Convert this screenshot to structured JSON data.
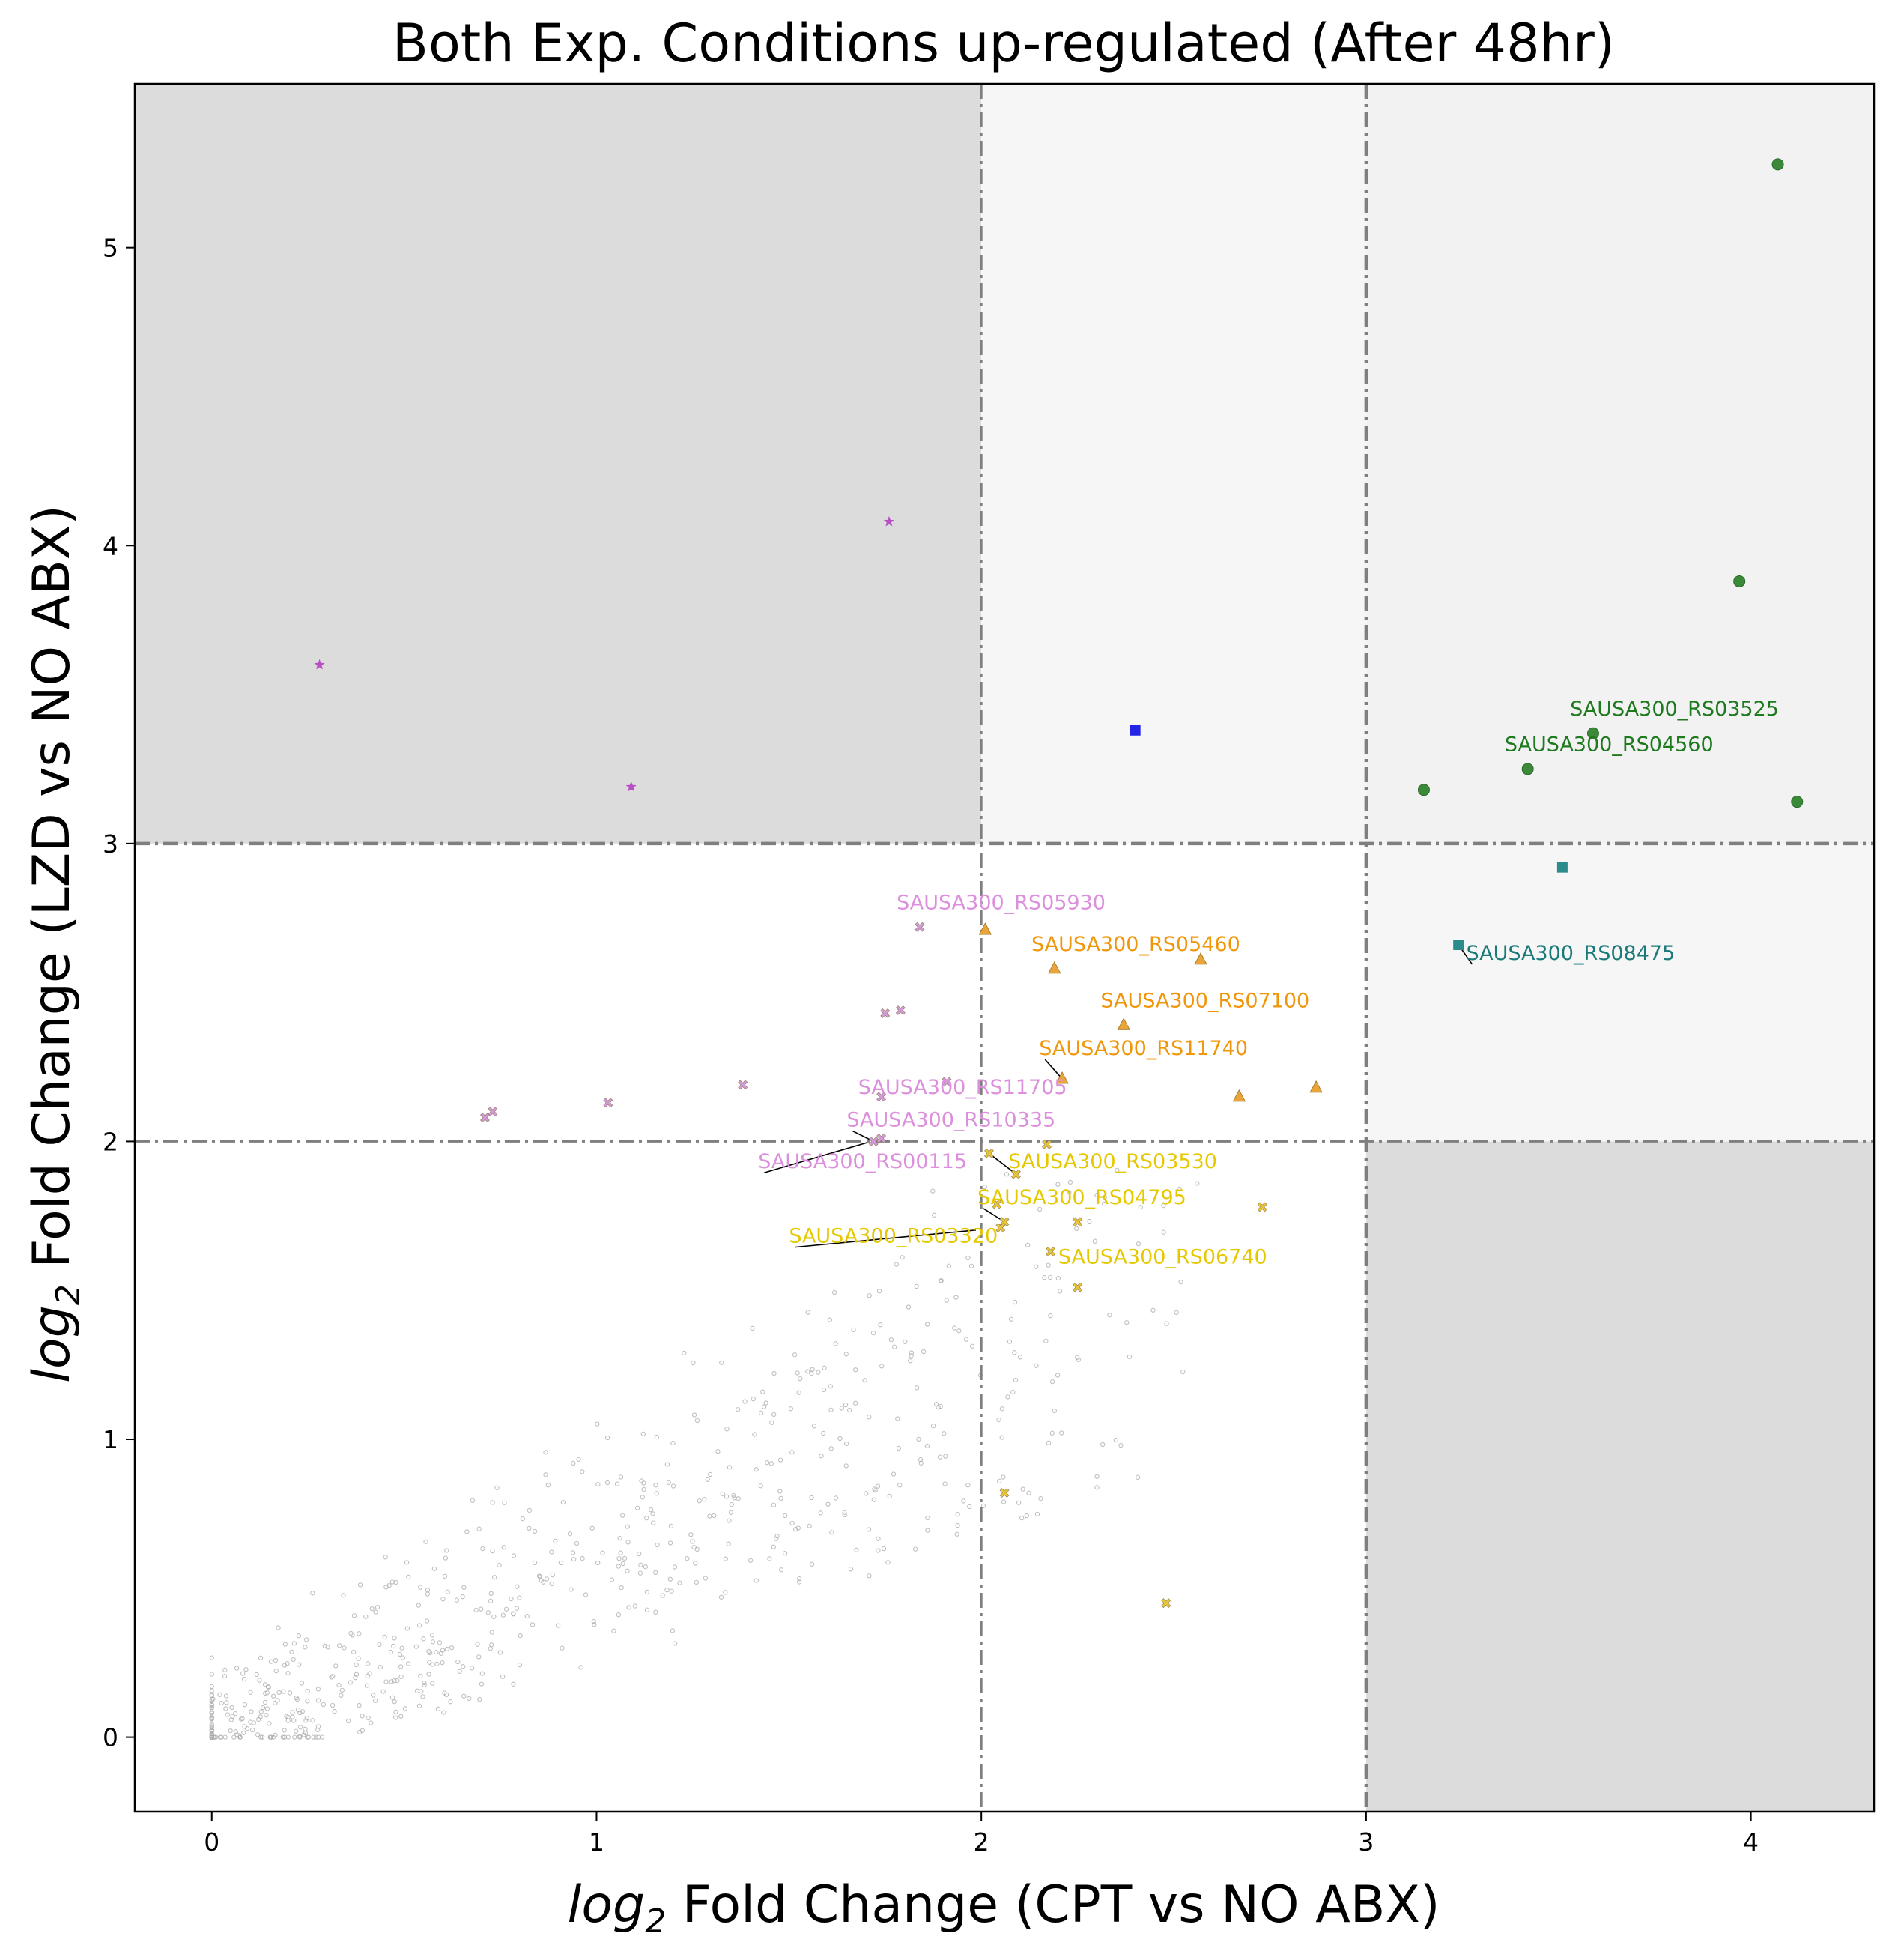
{
  "chart_data": {
    "type": "scatter",
    "title": "Both Exp. Conditions up-regulated (After 48hr)",
    "xlabel": {
      "main": "log",
      "sub": "2",
      "rest": " Fold Change (CPT vs NO ABX)"
    },
    "ylabel": {
      "main": "log",
      "sub": "2",
      "rest": " Fold Change (LZD vs NO ABX)"
    },
    "xlim": [
      -0.2,
      4.32
    ],
    "ylim": [
      -0.25,
      5.55
    ],
    "xticks": [
      0,
      1,
      2,
      3,
      4
    ],
    "yticks": [
      0,
      1,
      2,
      3,
      4,
      5
    ],
    "tick_labels_x": [
      "0",
      "1",
      "2",
      "3",
      "4"
    ],
    "tick_labels_y": [
      "0",
      "1",
      "2",
      "3",
      "4",
      "5"
    ],
    "grid": false,
    "thresholds": {
      "minor": 2,
      "major": 3
    },
    "regions": [
      {
        "x": [
          -0.2,
          2
        ],
        "y": [
          3,
          5.55
        ],
        "color": "#dcdcdc"
      },
      {
        "x": [
          2,
          3
        ],
        "y": [
          3,
          5.55
        ],
        "color": "#f6f6f6"
      },
      {
        "x": [
          3,
          4.32
        ],
        "y": [
          3,
          5.55
        ],
        "color": "#f2f2f2"
      },
      {
        "x": [
          3,
          4.32
        ],
        "y": [
          2,
          3
        ],
        "color": "#f6f6f6"
      },
      {
        "x": [
          3,
          4.32
        ],
        "y": [
          -0.25,
          2
        ],
        "color": "#dcdcdc"
      }
    ],
    "series": [
      {
        "marker": "circle",
        "color": "#3a8a3a",
        "label_color": "#1e7a1e",
        "points": [
          {
            "x": 4.07,
            "y": 5.28
          },
          {
            "x": 3.97,
            "y": 3.88
          },
          {
            "x": 3.59,
            "y": 3.37,
            "label": "SAUSA300_RS03525",
            "lx": 3.53,
            "ly": 3.43
          },
          {
            "x": 3.42,
            "y": 3.25,
            "label": "SAUSA300_RS04560",
            "lx": 3.36,
            "ly": 3.31
          },
          {
            "x": 3.15,
            "y": 3.18
          },
          {
            "x": 4.12,
            "y": 3.14
          }
        ]
      },
      {
        "marker": "square",
        "color": "#2c8c8c",
        "label_color": "#1a7a7a",
        "points": [
          {
            "x": 3.51,
            "y": 2.92
          },
          {
            "x": 3.24,
            "y": 2.66,
            "label": "SAUSA300_RS08475",
            "lx": 3.26,
            "ly": 2.61
          }
        ]
      },
      {
        "marker": "square",
        "color": "#2424e6",
        "points": [
          {
            "x": 2.4,
            "y": 3.38
          }
        ]
      },
      {
        "marker": "star",
        "color": "#b84fc4",
        "points": [
          {
            "x": 1.76,
            "y": 4.08
          },
          {
            "x": 0.28,
            "y": 3.6
          },
          {
            "x": 1.09,
            "y": 3.19
          }
        ]
      },
      {
        "marker": "triangle",
        "color": "#e9a43a",
        "label_color": "#f0960a",
        "points": [
          {
            "x": 2.01,
            "y": 2.71
          },
          {
            "x": 2.19,
            "y": 2.58,
            "label": "SAUSA300_RS05460",
            "lx": 2.13,
            "ly": 2.64
          },
          {
            "x": 2.57,
            "y": 2.61
          },
          {
            "x": 2.37,
            "y": 2.39,
            "label": "SAUSA300_RS07100",
            "lx": 2.31,
            "ly": 2.45
          },
          {
            "x": 2.21,
            "y": 2.21,
            "label": "SAUSA300_RS11740",
            "lx": 2.15,
            "ly": 2.29
          },
          {
            "x": 2.67,
            "y": 2.15
          },
          {
            "x": 2.87,
            "y": 2.18
          }
        ]
      },
      {
        "marker": "cross",
        "color": "#d39ad8",
        "label_color": "#dc8fdc",
        "points": [
          {
            "x": 1.84,
            "y": 2.72,
            "label": "SAUSA300_RS05930",
            "lx": 1.78,
            "ly": 2.78
          },
          {
            "x": 1.75,
            "y": 2.43
          },
          {
            "x": 1.79,
            "y": 2.44
          },
          {
            "x": 1.38,
            "y": 2.19
          },
          {
            "x": 1.91,
            "y": 2.2
          },
          {
            "x": 1.74,
            "y": 2.15,
            "label": "SAUSA300_RS11705",
            "lx": 1.68,
            "ly": 2.16
          },
          {
            "x": 1.03,
            "y": 2.13
          },
          {
            "x": 0.73,
            "y": 2.1
          },
          {
            "x": 0.71,
            "y": 2.08
          },
          {
            "x": 1.72,
            "y": 2.0,
            "label": "SAUSA300_RS10335",
            "lx": 1.65,
            "ly": 2.05
          },
          {
            "x": 1.74,
            "y": 2.01,
            "label": "SAUSA300_RS00115",
            "lx": 1.42,
            "ly": 1.91
          }
        ]
      },
      {
        "marker": "cross",
        "color": "#e8c437",
        "label_color": "#e6c800",
        "points": [
          {
            "x": 2.02,
            "y": 1.96,
            "label": "SAUSA300_RS03530",
            "lx": 2.07,
            "ly": 1.91
          },
          {
            "x": 2.17,
            "y": 1.99
          },
          {
            "x": 2.09,
            "y": 1.89
          },
          {
            "x": 2.04,
            "y": 1.79
          },
          {
            "x": 2.73,
            "y": 1.78
          },
          {
            "x": 2.06,
            "y": 1.73,
            "label": "SAUSA300_RS04795",
            "lx": 1.99,
            "ly": 1.79
          },
          {
            "x": 2.25,
            "y": 1.73
          },
          {
            "x": 2.05,
            "y": 1.71,
            "label": "SAUSA300_RS03320",
            "lx": 1.5,
            "ly": 1.66
          },
          {
            "x": 2.18,
            "y": 1.63,
            "label": "SAUSA300_RS06740",
            "lx": 2.2,
            "ly": 1.59
          },
          {
            "x": 2.25,
            "y": 1.51
          },
          {
            "x": 2.06,
            "y": 0.82
          },
          {
            "x": 2.48,
            "y": 0.45
          }
        ]
      }
    ]
  }
}
